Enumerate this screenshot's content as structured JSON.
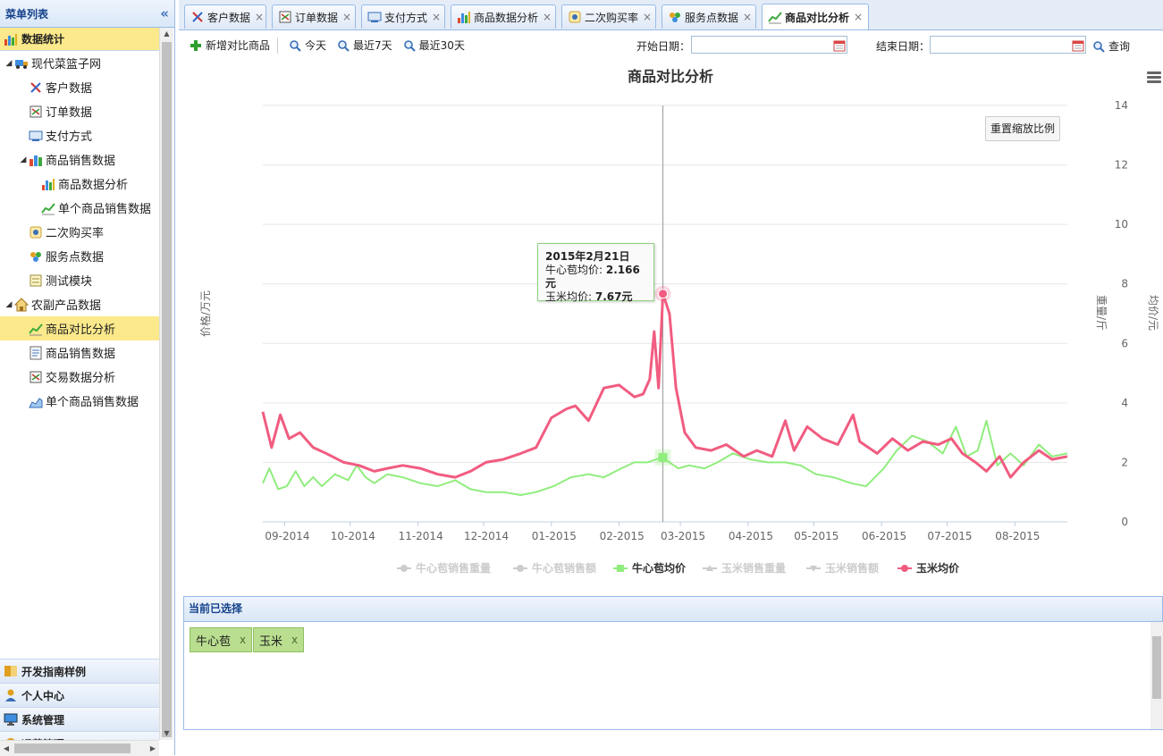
{
  "sidebar": {
    "title": "菜单列表",
    "collapse_icon": "double-chevron-left-icon",
    "section_active": "数据统计",
    "tree": [
      {
        "label": "现代菜篮子网",
        "level": 0,
        "toggle": "▲"
      },
      {
        "label": "客户数据",
        "level": 1
      },
      {
        "label": "订单数据",
        "level": 1
      },
      {
        "label": "支付方式",
        "level": 1
      },
      {
        "label": "商品销售数据",
        "level": 1,
        "toggle": "▲"
      },
      {
        "label": "商品数据分析",
        "level": 2
      },
      {
        "label": "单个商品销售数据",
        "level": 2
      },
      {
        "label": "二次购买率",
        "level": 1
      },
      {
        "label": "服务点数据",
        "level": 1
      },
      {
        "label": "测试模块",
        "level": 1
      },
      {
        "label": "农副产品数据",
        "level": 0,
        "toggle": "▲"
      },
      {
        "label": "商品对比分析",
        "level": 1,
        "selected": true
      },
      {
        "label": "商品销售数据",
        "level": 1
      },
      {
        "label": "交易数据分析",
        "level": 1
      },
      {
        "label": "单个商品销售数据",
        "level": 1
      }
    ],
    "sections_bottom": [
      "开发指南样例",
      "个人中心",
      "系统管理",
      "运营管理"
    ]
  },
  "tabs": [
    {
      "label": "客户数据",
      "icon": "customer-icon"
    },
    {
      "label": "订单数据",
      "icon": "order-icon"
    },
    {
      "label": "支付方式",
      "icon": "payment-icon"
    },
    {
      "label": "商品数据分析",
      "icon": "bar-chart-icon"
    },
    {
      "label": "二次购买率",
      "icon": "rebuy-icon"
    },
    {
      "label": "服务点数据",
      "icon": "service-point-icon"
    },
    {
      "label": "商品对比分析",
      "icon": "line-chart-icon",
      "active": true
    }
  ],
  "toolbar": {
    "add_label": "新增对比商品",
    "today_label": "今天",
    "last7_label": "最近7天",
    "last30_label": "最近30天",
    "start_label": "开始日期：",
    "end_label": "结束日期：",
    "start_value": "",
    "end_value": "",
    "query_label": "查询"
  },
  "chart": {
    "reset_label": "重置缩放比例",
    "tooltip": {
      "date": "2015年2月21日",
      "line1_label": "牛心苞均价: ",
      "line1_value": "2.166元",
      "line2_label": "玉米均价: ",
      "line2_value": "7.67元"
    }
  },
  "chart_data": {
    "type": "line",
    "title": "商品对比分析",
    "ylabel_left": "价格/万元",
    "ylabel_right_1": "重量/斤",
    "ylabel_right_2": "均价/元",
    "y_ticks": [
      0,
      2,
      4,
      6,
      8,
      10,
      12,
      14
    ],
    "ylim": [
      0,
      14
    ],
    "x_ticks": [
      "09-2014",
      "10-2014",
      "11-2014",
      "12-2014",
      "01-2015",
      "02-2015",
      "03-2015",
      "04-2015",
      "05-2015",
      "06-2015",
      "07-2015",
      "08-2015"
    ],
    "x_date_range": [
      "2014-08-22",
      "2015-08-25"
    ],
    "grid": true,
    "legend_position": "bottom",
    "series": [
      {
        "name": "牛心苞销售重量",
        "visible": false,
        "color": "#cccccc",
        "marker": "circle"
      },
      {
        "name": "牛心苞销售额",
        "visible": false,
        "color": "#cccccc",
        "marker": "circle"
      },
      {
        "name": "牛心苞均价",
        "visible": true,
        "color": "#90ed7d",
        "marker": "square",
        "points": [
          [
            "2014-08-22",
            1.3
          ],
          [
            "2014-08-25",
            1.8
          ],
          [
            "2014-08-29",
            1.1
          ],
          [
            "2014-09-02",
            1.2
          ],
          [
            "2014-09-06",
            1.7
          ],
          [
            "2014-09-10",
            1.2
          ],
          [
            "2014-09-14",
            1.5
          ],
          [
            "2014-09-18",
            1.2
          ],
          [
            "2014-09-24",
            1.6
          ],
          [
            "2014-09-30",
            1.4
          ],
          [
            "2014-10-04",
            1.9
          ],
          [
            "2014-10-08",
            1.5
          ],
          [
            "2014-10-12",
            1.3
          ],
          [
            "2014-10-18",
            1.6
          ],
          [
            "2014-10-25",
            1.5
          ],
          [
            "2014-11-02",
            1.3
          ],
          [
            "2014-11-10",
            1.2
          ],
          [
            "2014-11-18",
            1.4
          ],
          [
            "2014-11-25",
            1.1
          ],
          [
            "2014-12-02",
            1.0
          ],
          [
            "2014-12-10",
            1.0
          ],
          [
            "2014-12-18",
            0.9
          ],
          [
            "2014-12-25",
            1.0
          ],
          [
            "2015-01-02",
            1.2
          ],
          [
            "2015-01-10",
            1.5
          ],
          [
            "2015-01-18",
            1.6
          ],
          [
            "2015-01-25",
            1.5
          ],
          [
            "2015-02-02",
            1.8
          ],
          [
            "2015-02-08",
            2.0
          ],
          [
            "2015-02-14",
            2.0
          ],
          [
            "2015-02-18",
            2.1
          ],
          [
            "2015-02-21",
            2.166
          ],
          [
            "2015-02-24",
            2.0
          ],
          [
            "2015-02-28",
            1.8
          ],
          [
            "2015-03-05",
            1.9
          ],
          [
            "2015-03-12",
            1.8
          ],
          [
            "2015-03-18",
            2.0
          ],
          [
            "2015-03-25",
            2.3
          ],
          [
            "2015-04-02",
            2.1
          ],
          [
            "2015-04-10",
            2.0
          ],
          [
            "2015-04-18",
            2.0
          ],
          [
            "2015-04-25",
            1.9
          ],
          [
            "2015-05-02",
            1.6
          ],
          [
            "2015-05-10",
            1.5
          ],
          [
            "2015-05-18",
            1.3
          ],
          [
            "2015-05-25",
            1.2
          ],
          [
            "2015-06-02",
            1.8
          ],
          [
            "2015-06-08",
            2.4
          ],
          [
            "2015-06-15",
            2.9
          ],
          [
            "2015-06-22",
            2.7
          ],
          [
            "2015-06-29",
            2.3
          ],
          [
            "2015-07-05",
            3.2
          ],
          [
            "2015-07-10",
            2.2
          ],
          [
            "2015-07-15",
            2.4
          ],
          [
            "2015-07-19",
            3.4
          ],
          [
            "2015-07-24",
            1.9
          ],
          [
            "2015-07-30",
            2.3
          ],
          [
            "2015-08-05",
            1.9
          ],
          [
            "2015-08-12",
            2.6
          ],
          [
            "2015-08-18",
            2.2
          ],
          [
            "2015-08-25",
            2.3
          ]
        ]
      },
      {
        "name": "玉米销售重量",
        "visible": false,
        "color": "#cccccc",
        "marker": "triangle"
      },
      {
        "name": "玉米销售额",
        "visible": false,
        "color": "#cccccc",
        "marker": "triangle-down"
      },
      {
        "name": "玉米均价",
        "visible": true,
        "color": "#f15c80",
        "marker": "circle",
        "points": [
          [
            "2014-08-22",
            3.7
          ],
          [
            "2014-08-26",
            2.5
          ],
          [
            "2014-08-30",
            3.6
          ],
          [
            "2014-09-03",
            2.8
          ],
          [
            "2014-09-08",
            3.0
          ],
          [
            "2014-09-14",
            2.5
          ],
          [
            "2014-09-20",
            2.3
          ],
          [
            "2014-09-28",
            2.0
          ],
          [
            "2014-10-05",
            1.9
          ],
          [
            "2014-10-12",
            1.7
          ],
          [
            "2014-10-18",
            1.8
          ],
          [
            "2014-10-25",
            1.9
          ],
          [
            "2014-11-02",
            1.8
          ],
          [
            "2014-11-10",
            1.6
          ],
          [
            "2014-11-18",
            1.5
          ],
          [
            "2014-11-25",
            1.7
          ],
          [
            "2014-12-02",
            2.0
          ],
          [
            "2014-12-10",
            2.1
          ],
          [
            "2014-12-18",
            2.3
          ],
          [
            "2014-12-25",
            2.5
          ],
          [
            "2015-01-01",
            3.5
          ],
          [
            "2015-01-08",
            3.8
          ],
          [
            "2015-01-12",
            3.9
          ],
          [
            "2015-01-18",
            3.4
          ],
          [
            "2015-01-25",
            4.5
          ],
          [
            "2015-02-01",
            4.6
          ],
          [
            "2015-02-08",
            4.2
          ],
          [
            "2015-02-12",
            4.3
          ],
          [
            "2015-02-15",
            4.8
          ],
          [
            "2015-02-17",
            6.4
          ],
          [
            "2015-02-19",
            4.5
          ],
          [
            "2015-02-21",
            7.67
          ],
          [
            "2015-02-24",
            7.0
          ],
          [
            "2015-02-27",
            4.5
          ],
          [
            "2015-03-03",
            3.0
          ],
          [
            "2015-03-08",
            2.5
          ],
          [
            "2015-03-15",
            2.4
          ],
          [
            "2015-03-22",
            2.6
          ],
          [
            "2015-03-30",
            2.2
          ],
          [
            "2015-04-05",
            2.4
          ],
          [
            "2015-04-12",
            2.2
          ],
          [
            "2015-04-18",
            3.4
          ],
          [
            "2015-04-22",
            2.4
          ],
          [
            "2015-04-28",
            3.2
          ],
          [
            "2015-05-05",
            2.8
          ],
          [
            "2015-05-12",
            2.6
          ],
          [
            "2015-05-19",
            3.6
          ],
          [
            "2015-05-22",
            2.7
          ],
          [
            "2015-05-30",
            2.3
          ],
          [
            "2015-06-06",
            2.8
          ],
          [
            "2015-06-13",
            2.4
          ],
          [
            "2015-06-20",
            2.7
          ],
          [
            "2015-06-27",
            2.6
          ],
          [
            "2015-07-03",
            2.8
          ],
          [
            "2015-07-08",
            2.3
          ],
          [
            "2015-07-14",
            2.0
          ],
          [
            "2015-07-19",
            1.7
          ],
          [
            "2015-07-25",
            2.2
          ],
          [
            "2015-07-30",
            1.5
          ],
          [
            "2015-08-05",
            2.0
          ],
          [
            "2015-08-12",
            2.4
          ],
          [
            "2015-08-18",
            2.1
          ],
          [
            "2015-08-25",
            2.2
          ]
        ]
      }
    ],
    "highlight_date": "2015-02-21"
  },
  "selected_panel": {
    "title": "当前已选择",
    "chips": [
      {
        "label": "牛心苞",
        "remove": "x"
      },
      {
        "label": "玉米",
        "remove": "x"
      }
    ]
  }
}
